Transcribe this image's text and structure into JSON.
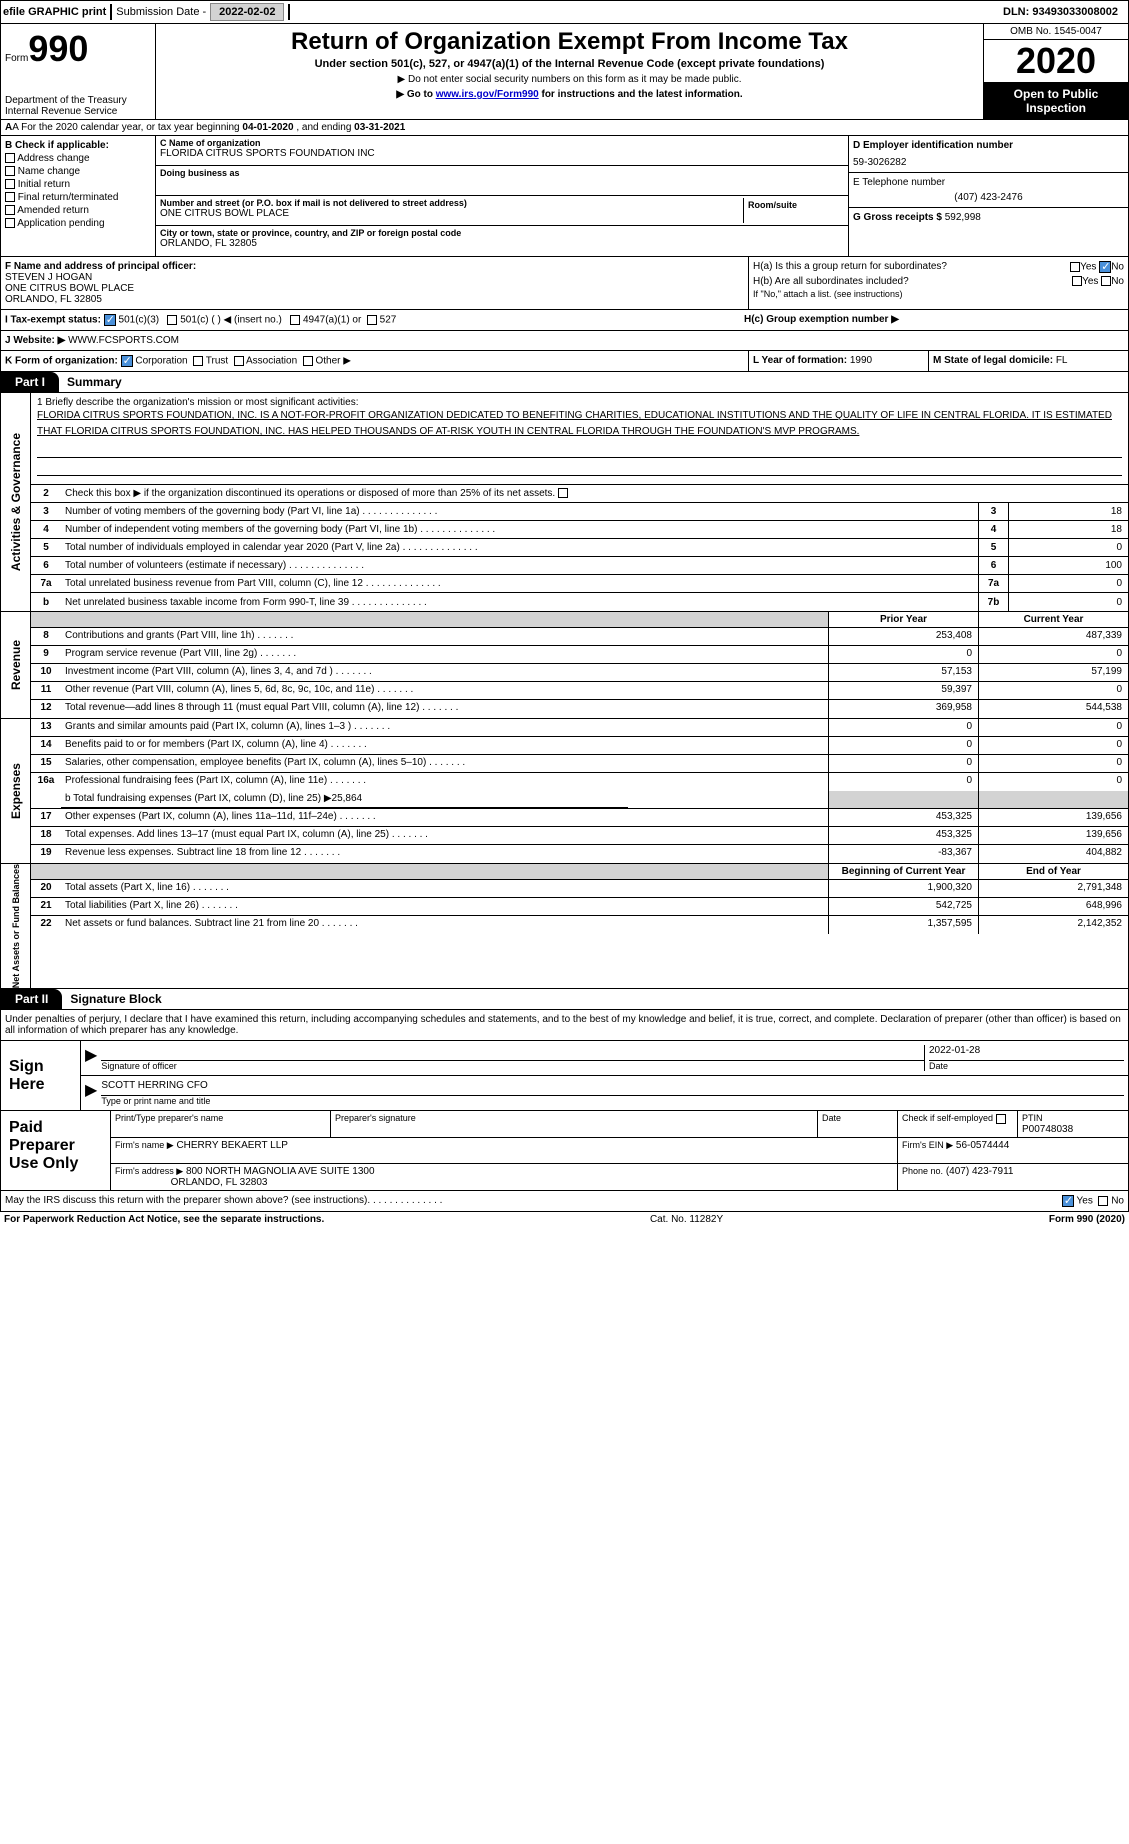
{
  "topbar": {
    "efile": "efile GRAPHIC print",
    "sub_label": "Submission Date -",
    "sub_date": "2022-02-02",
    "dln": "DLN: 93493033008002"
  },
  "header": {
    "form_word": "Form",
    "form_num": "990",
    "dept": "Department of the Treasury\nInternal Revenue Service",
    "title": "Return of Organization Exempt From Income Tax",
    "subtitle": "Under section 501(c), 527, or 4947(a)(1) of the Internal Revenue Code (except private foundations)",
    "warn": "▶ Do not enter social security numbers on this form as it may be made public.",
    "goto_pre": "▶ Go to ",
    "goto_link": "www.irs.gov/Form990",
    "goto_post": " for instructions and the latest information.",
    "omb": "OMB No. 1545-0047",
    "year": "2020",
    "open": "Open to Public Inspection"
  },
  "rowA": {
    "pre": "A For the 2020 calendar year, or tax year beginning ",
    "begin": "04-01-2020",
    "mid": "   , and ending ",
    "end": "03-31-2021"
  },
  "colB": {
    "label": "B Check if applicable:",
    "items": [
      "Address change",
      "Name change",
      "Initial return",
      "Final return/terminated",
      "Amended return",
      "Application pending"
    ]
  },
  "colC": {
    "name_label": "C Name of organization",
    "name": "FLORIDA CITRUS SPORTS FOUNDATION INC",
    "dba_label": "Doing business as",
    "dba": "",
    "addr_label": "Number and street (or P.O. box if mail is not delivered to street address)",
    "room_label": "Room/suite",
    "addr": "ONE CITRUS BOWL PLACE",
    "city_label": "City or town, state or province, country, and ZIP or foreign postal code",
    "city": "ORLANDO, FL  32805"
  },
  "colD": {
    "ein_label": "D Employer identification number",
    "ein": "59-3026282",
    "tel_label": "E Telephone number",
    "tel": "(407) 423-2476",
    "gross_label": "G Gross receipts $",
    "gross": "592,998"
  },
  "rowF": {
    "label": "F  Name and address of principal officer:",
    "name": "STEVEN J HOGAN",
    "addr1": "ONE CITRUS BOWL PLACE",
    "addr2": "ORLANDO, FL  32805"
  },
  "rowH": {
    "a": "H(a)  Is this a group return for subordinates?",
    "b": "H(b)  Are all subordinates included?",
    "b_note": "If \"No,\" attach a list. (see instructions)",
    "c": "H(c)  Group exemption number ▶",
    "yes": "Yes",
    "no": "No"
  },
  "rowI": {
    "label": "I  Tax-exempt status:",
    "opts": [
      "501(c)(3)",
      "501(c) (  ) ◀ (insert no.)",
      "4947(a)(1) or",
      "527"
    ]
  },
  "rowJ": {
    "label": "J  Website: ▶",
    "val": "WWW.FCSPORTS.COM"
  },
  "rowK": {
    "label": "K Form of organization:",
    "opts": [
      "Corporation",
      "Trust",
      "Association",
      "Other ▶"
    ]
  },
  "rowL": {
    "label": "L Year of formation:",
    "val": "1990"
  },
  "rowM": {
    "label": "M State of legal domicile:",
    "val": "FL"
  },
  "part1": {
    "tab": "Part I",
    "title": "Summary"
  },
  "mission": {
    "label": "1  Briefly describe the organization's mission or most significant activities:",
    "text": "FLORIDA CITRUS SPORTS FOUNDATION, INC. IS A NOT-FOR-PROFIT ORGANIZATION DEDICATED TO BENEFITING CHARITIES, EDUCATIONAL INSTITUTIONS AND THE QUALITY OF LIFE IN CENTRAL FLORIDA. IT IS ESTIMATED THAT FLORIDA CITRUS SPORTS FOUNDATION, INC. HAS HELPED THOUSANDS OF AT-RISK YOUTH IN CENTRAL FLORIDA THROUGH THE FOUNDATION'S MVP PROGRAMS."
  },
  "activities": {
    "label": "Activities & Governance",
    "l2": "Check this box ▶       if the organization discontinued its operations or disposed of more than 25% of its net assets.",
    "rows": [
      {
        "n": "3",
        "t": "Number of voting members of the governing body (Part VI, line 1a)",
        "b": "3",
        "v": "18"
      },
      {
        "n": "4",
        "t": "Number of independent voting members of the governing body (Part VI, line 1b)",
        "b": "4",
        "v": "18"
      },
      {
        "n": "5",
        "t": "Total number of individuals employed in calendar year 2020 (Part V, line 2a)",
        "b": "5",
        "v": "0"
      },
      {
        "n": "6",
        "t": "Total number of volunteers (estimate if necessary)",
        "b": "6",
        "v": "100"
      },
      {
        "n": "7a",
        "t": "Total unrelated business revenue from Part VIII, column (C), line 12",
        "b": "7a",
        "v": "0"
      },
      {
        "n": "b",
        "t": "Net unrelated business taxable income from Form 990-T, line 39",
        "b": "7b",
        "v": "0"
      }
    ]
  },
  "twocol": {
    "prior": "Prior Year",
    "current": "Current Year",
    "begin": "Beginning of Current Year",
    "end": "End of Year"
  },
  "revenue": {
    "label": "Revenue",
    "rows": [
      {
        "n": "8",
        "t": "Contributions and grants (Part VIII, line 1h)",
        "c1": "253,408",
        "c2": "487,339"
      },
      {
        "n": "9",
        "t": "Program service revenue (Part VIII, line 2g)",
        "c1": "0",
        "c2": "0"
      },
      {
        "n": "10",
        "t": "Investment income (Part VIII, column (A), lines 3, 4, and 7d )",
        "c1": "57,153",
        "c2": "57,199"
      },
      {
        "n": "11",
        "t": "Other revenue (Part VIII, column (A), lines 5, 6d, 8c, 9c, 10c, and 11e)",
        "c1": "59,397",
        "c2": "0"
      },
      {
        "n": "12",
        "t": "Total revenue—add lines 8 through 11 (must equal Part VIII, column (A), line 12)",
        "c1": "369,958",
        "c2": "544,538"
      }
    ]
  },
  "expenses": {
    "label": "Expenses",
    "rows": [
      {
        "n": "13",
        "t": "Grants and similar amounts paid (Part IX, column (A), lines 1–3 )",
        "c1": "0",
        "c2": "0"
      },
      {
        "n": "14",
        "t": "Benefits paid to or for members (Part IX, column (A), line 4)",
        "c1": "0",
        "c2": "0"
      },
      {
        "n": "15",
        "t": "Salaries, other compensation, employee benefits (Part IX, column (A), lines 5–10)",
        "c1": "0",
        "c2": "0"
      },
      {
        "n": "16a",
        "t": "Professional fundraising fees (Part IX, column (A), line 11e)",
        "c1": "0",
        "c2": "0"
      }
    ],
    "b_line": "b  Total fundraising expenses (Part IX, column (D), line 25) ▶25,864",
    "rows2": [
      {
        "n": "17",
        "t": "Other expenses (Part IX, column (A), lines 11a–11d, 11f–24e)",
        "c1": "453,325",
        "c2": "139,656"
      },
      {
        "n": "18",
        "t": "Total expenses. Add lines 13–17 (must equal Part IX, column (A), line 25)",
        "c1": "453,325",
        "c2": "139,656"
      },
      {
        "n": "19",
        "t": "Revenue less expenses. Subtract line 18 from line 12",
        "c1": "-83,367",
        "c2": "404,882"
      }
    ]
  },
  "netassets": {
    "label": "Net Assets or Fund Balances",
    "rows": [
      {
        "n": "20",
        "t": "Total assets (Part X, line 16)",
        "c1": "1,900,320",
        "c2": "2,791,348"
      },
      {
        "n": "21",
        "t": "Total liabilities (Part X, line 26)",
        "c1": "542,725",
        "c2": "648,996"
      },
      {
        "n": "22",
        "t": "Net assets or fund balances. Subtract line 21 from line 20",
        "c1": "1,357,595",
        "c2": "2,142,352"
      }
    ]
  },
  "part2": {
    "tab": "Part II",
    "title": "Signature Block"
  },
  "sig": {
    "intro": "Under penalties of perjury, I declare that I have examined this return, including accompanying schedules and statements, and to the best of my knowledge and belief, it is true, correct, and complete. Declaration of preparer (other than officer) is based on all information of which preparer has any knowledge.",
    "sign_here": "Sign Here",
    "sig_label": "Signature of officer",
    "date_label": "Date",
    "date": "2022-01-28",
    "name": "SCOTT HERRING  CFO",
    "name_label": "Type or print name and title"
  },
  "prep": {
    "label": "Paid Preparer Use Only",
    "ptname_label": "Print/Type preparer's name",
    "psig_label": "Preparer's signature",
    "pdate_label": "Date",
    "check_label": "Check         if self-employed",
    "ptin_label": "PTIN",
    "ptin": "P00748038",
    "firm_name_label": "Firm's name    ▶",
    "firm_name": "CHERRY BEKAERT LLP",
    "firm_ein_label": "Firm's EIN ▶",
    "firm_ein": "56-0574444",
    "firm_addr_label": "Firm's address ▶",
    "firm_addr1": "800 NORTH MAGNOLIA AVE SUITE 1300",
    "firm_addr2": "ORLANDO, FL  32803",
    "phone_label": "Phone no.",
    "phone": "(407) 423-7911"
  },
  "discuss": {
    "text": "May the IRS discuss this return with the preparer shown above? (see instructions)",
    "yes": "Yes",
    "no": "No"
  },
  "footer": {
    "left": "For Paperwork Reduction Act Notice, see the separate instructions.",
    "mid": "Cat. No. 11282Y",
    "right": "Form 990 (2020)"
  },
  "colors": {
    "link": "#0000cc",
    "check": "#4a90d9",
    "grey": "#d3d3d3"
  }
}
